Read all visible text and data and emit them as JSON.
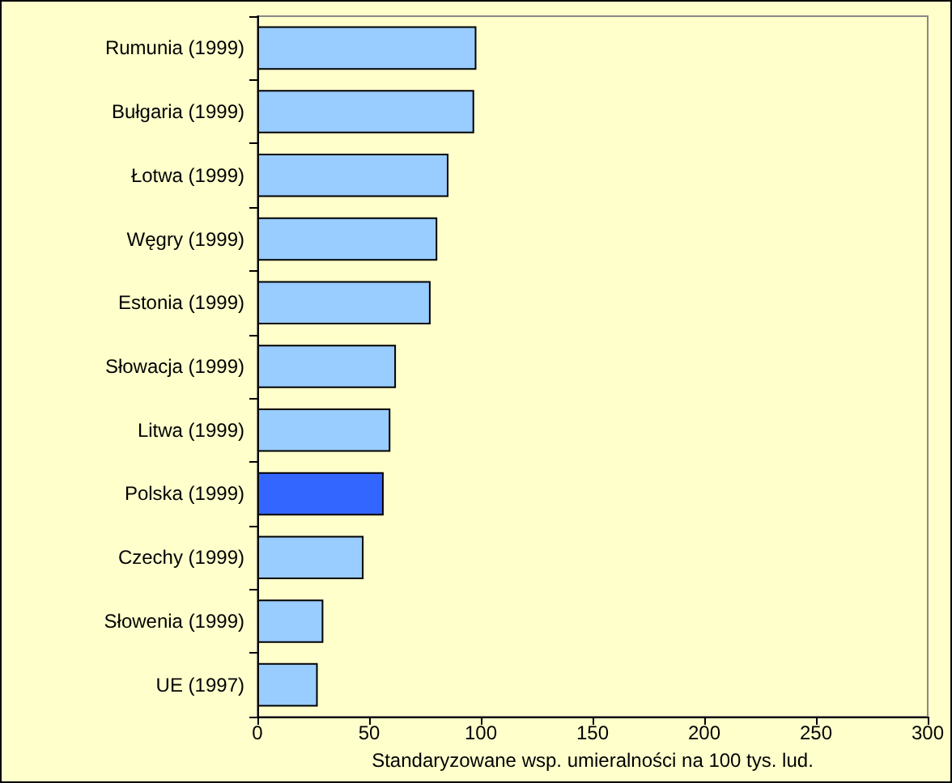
{
  "chart_data": {
    "type": "bar",
    "orientation": "horizontal",
    "xlabel": "Standaryzowane wsp. umieralności na 100 tys. lud.",
    "categories": [
      "Rumunia (1999)",
      "Bułgaria (1999)",
      "Łotwa (1999)",
      "Węgry (1999)",
      "Estonia (1999)",
      "Słowacja (1999)",
      "Litwa (1999)",
      "Polska (1999)",
      "Czechy (1999)",
      "Słowenia (1999)",
      "UE (1997)"
    ],
    "values": [
      98,
      97,
      85.5,
      80.5,
      77.5,
      62,
      59.5,
      56.5,
      47.5,
      29.5,
      27
    ],
    "colors": [
      "#99ccff",
      "#99ccff",
      "#99ccff",
      "#99ccff",
      "#99ccff",
      "#99ccff",
      "#99ccff",
      "#3366ff",
      "#99ccff",
      "#99ccff",
      "#99ccff"
    ],
    "xlim": [
      0,
      300
    ],
    "xticks": [
      0,
      50,
      100,
      150,
      200,
      250,
      300
    ],
    "grid": false
  }
}
